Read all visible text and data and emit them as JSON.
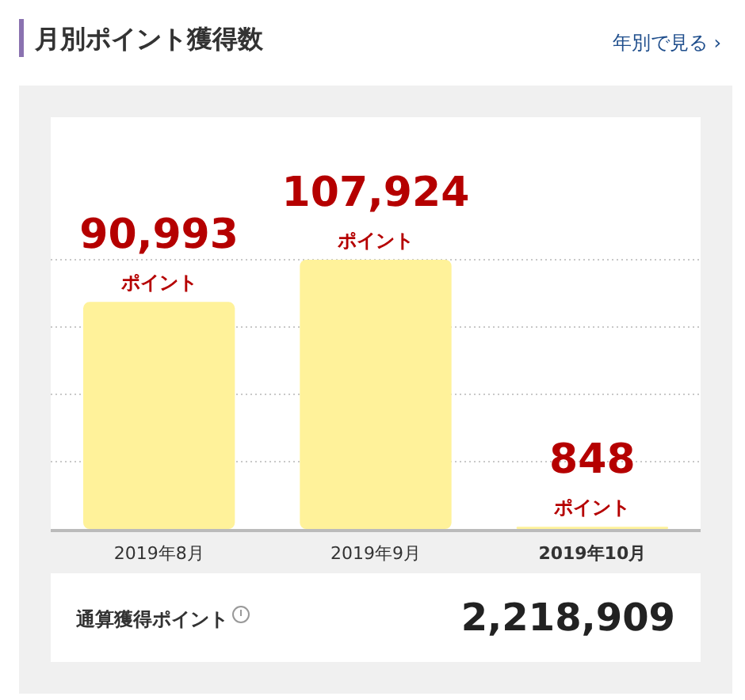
{
  "chart_data": {
    "type": "bar",
    "title": "月別ポイント獲得数",
    "categories": [
      "2019年8月",
      "2019年9月",
      "2019年10月"
    ],
    "values": [
      90993,
      107924,
      848
    ],
    "value_labels": [
      "90,993\nポイント",
      "107,924\nポイント",
      "848\nポイント"
    ],
    "color": "#fff29a",
    "ylim": [
      0,
      107924
    ],
    "yticks": [
      {
        "value": 26981,
        "label": null
      },
      {
        "value": 53962,
        "label": null
      },
      {
        "value": 80943,
        "label": null
      },
      {
        "value": 107924,
        "label": null
      }
    ],
    "grid": "y",
    "annotations": [
      "年別で見る ›",
      "通算獲得ポイント",
      "2,218,909"
    ]
  }
}
